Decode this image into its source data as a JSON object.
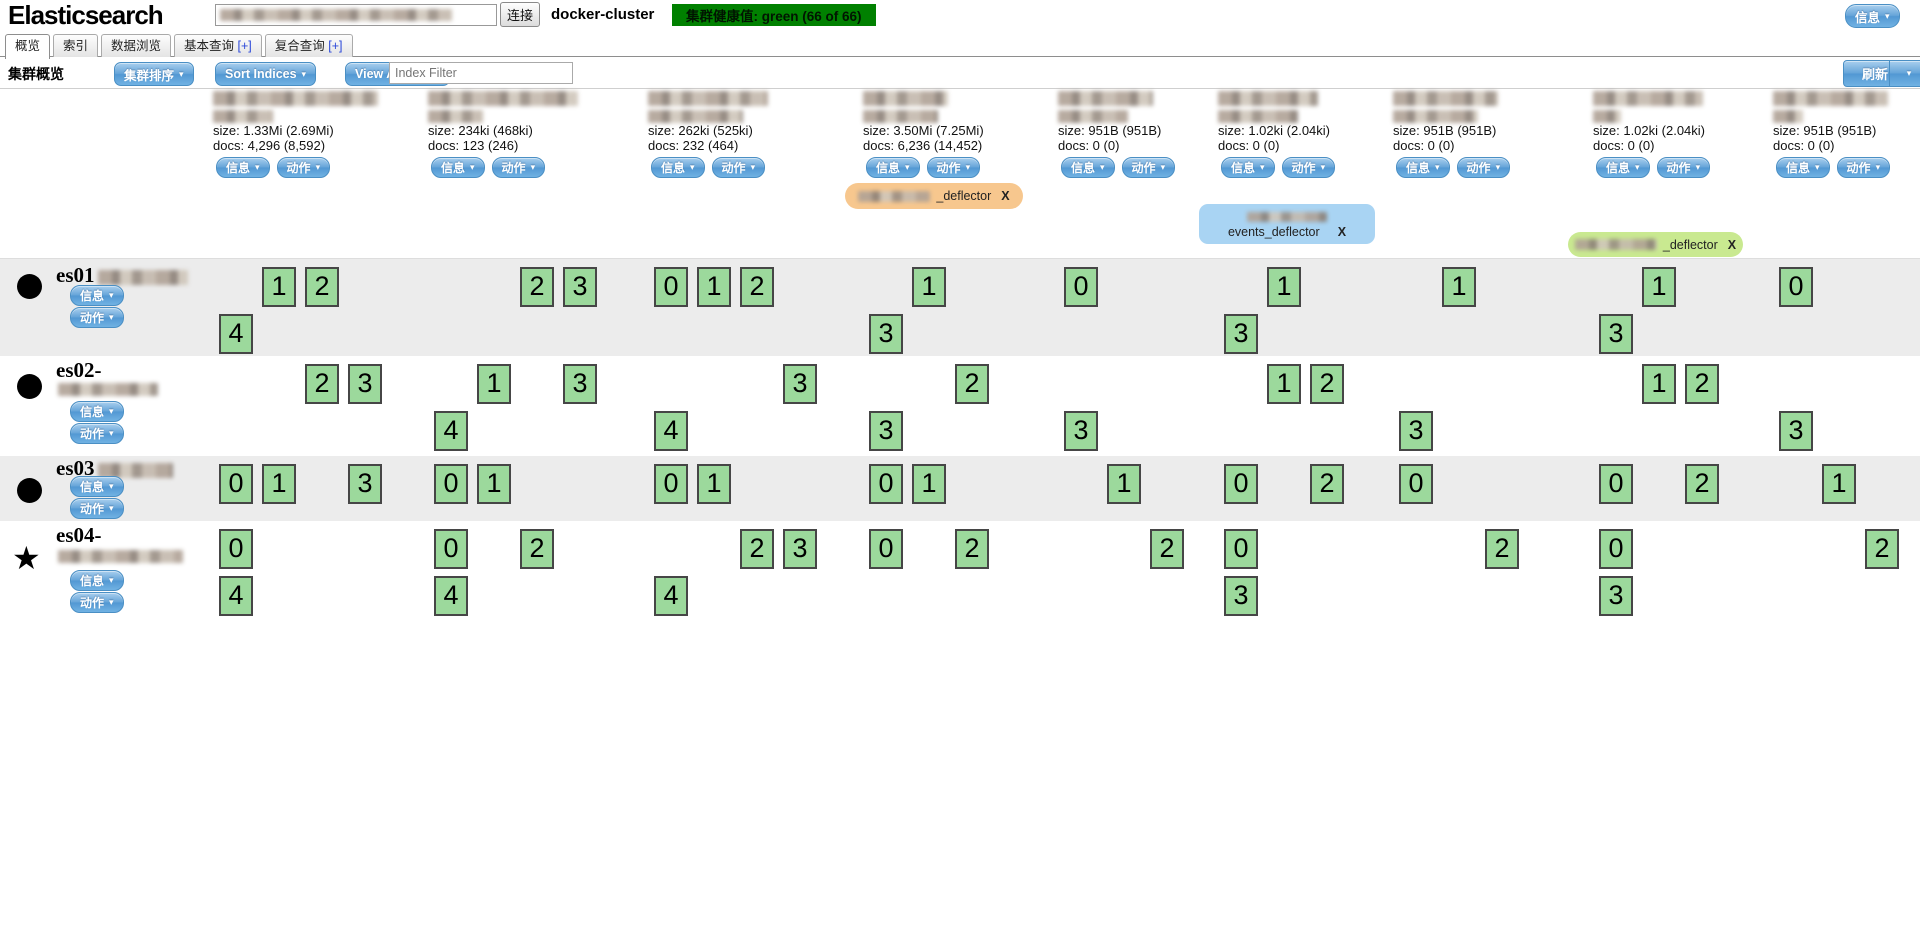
{
  "header": {
    "logo": "Elasticsearch",
    "connect_label": "连接",
    "cluster_name": "docker-cluster",
    "health_text": "集群健康值: green (66 of 66)",
    "health_color": "#008000",
    "info_label": "信息"
  },
  "tabs": [
    {
      "label": "概览",
      "suffix": "",
      "active": true
    },
    {
      "label": "索引",
      "suffix": "",
      "active": false
    },
    {
      "label": "数据浏览",
      "suffix": "",
      "active": false
    },
    {
      "label": "基本查询",
      "suffix": "[+]",
      "active": false
    },
    {
      "label": "复合查询",
      "suffix": "[+]",
      "active": false
    }
  ],
  "toolbar": {
    "section_label": "集群概览",
    "cluster_sort_label": "集群排序",
    "sort_indices_label": "Sort Indices",
    "view_aliases_label": "View Aliases",
    "filter_placeholder": "Index Filter",
    "refresh_label": "刷新",
    "caret": "▾"
  },
  "index_buttons": {
    "info": "信息",
    "action": "动作",
    "caret": "▾"
  },
  "indices": [
    {
      "size": "size: 1.33Mi (2.69Mi)",
      "docs": "docs: 4,296 (8,592)"
    },
    {
      "size": "size: 234ki (468ki)",
      "docs": "docs: 123 (246)"
    },
    {
      "size": "size: 262ki (525ki)",
      "docs": "docs: 232 (464)"
    },
    {
      "size": "size: 3.50Mi (7.25Mi)",
      "docs": "docs: 6,236 (14,452)"
    },
    {
      "size": "size: 951B (951B)",
      "docs": "docs: 0 (0)"
    },
    {
      "size": "size: 1.02ki (2.04ki)",
      "docs": "docs: 0 (0)"
    },
    {
      "size": "size: 951B (951B)",
      "docs": "docs: 0 (0)"
    },
    {
      "size": "size: 1.02ki (2.04ki)",
      "docs": "docs: 0 (0)"
    },
    {
      "size": "size: 951B (951B)",
      "docs": "docs: 0 (0)"
    }
  ],
  "aliases": [
    {
      "column": 4,
      "variant": "orange",
      "label": "_deflector",
      "close": "X"
    },
    {
      "column": 6,
      "variant": "blue",
      "label": "events_deflector",
      "close": "X"
    },
    {
      "column": 8,
      "variant": "green",
      "label": "_deflector",
      "close": "X"
    }
  ],
  "nodes": [
    {
      "name": "es01",
      "icon": "circle",
      "master": false,
      "shards": [
        [
          [
            1,
            2
          ],
          [
            4
          ]
        ],
        [
          [
            2,
            3
          ],
          []
        ],
        [
          [
            0,
            1,
            2
          ],
          []
        ],
        [
          [
            1
          ],
          [
            3
          ]
        ],
        [
          [
            0
          ],
          []
        ],
        [
          [
            1
          ],
          [
            3
          ]
        ],
        [
          [
            1
          ],
          []
        ],
        [
          [
            1
          ],
          [
            3
          ]
        ],
        [
          [
            0
          ],
          []
        ]
      ]
    },
    {
      "name": "es02-",
      "icon": "circle",
      "master": false,
      "shards": [
        [
          [
            2,
            3
          ],
          []
        ],
        [
          [
            1,
            3
          ],
          [
            4
          ]
        ],
        [
          [
            3
          ],
          [
            4
          ]
        ],
        [
          [
            2
          ],
          [
            3
          ]
        ],
        [
          [],
          [
            3
          ]
        ],
        [
          [
            1,
            2
          ],
          []
        ],
        [
          [],
          [
            3
          ]
        ],
        [
          [
            1,
            2
          ],
          []
        ],
        [
          [],
          [
            3
          ]
        ]
      ]
    },
    {
      "name": "es03",
      "icon": "circle",
      "master": false,
      "shards": [
        [
          [
            0,
            1,
            3
          ],
          []
        ],
        [
          [
            0,
            1
          ],
          []
        ],
        [
          [
            0,
            1
          ],
          []
        ],
        [
          [
            0,
            1
          ],
          []
        ],
        [
          [
            1
          ],
          []
        ],
        [
          [
            0,
            2
          ],
          []
        ],
        [
          [
            0
          ],
          []
        ],
        [
          [
            0,
            2
          ],
          []
        ],
        [
          [
            1
          ],
          []
        ]
      ]
    },
    {
      "name": "es04-",
      "icon": "star",
      "master": true,
      "shards": [
        [
          [
            0
          ],
          [
            4
          ]
        ],
        [
          [
            0,
            2
          ],
          [
            4
          ]
        ],
        [
          [
            2,
            3
          ],
          [
            4
          ]
        ],
        [
          [
            0,
            2
          ],
          []
        ],
        [
          [
            2
          ],
          []
        ],
        [
          [
            0
          ],
          [
            3
          ]
        ],
        [
          [
            2
          ],
          []
        ],
        [
          [
            0
          ],
          [
            3
          ]
        ],
        [
          [
            2
          ],
          []
        ]
      ]
    }
  ]
}
